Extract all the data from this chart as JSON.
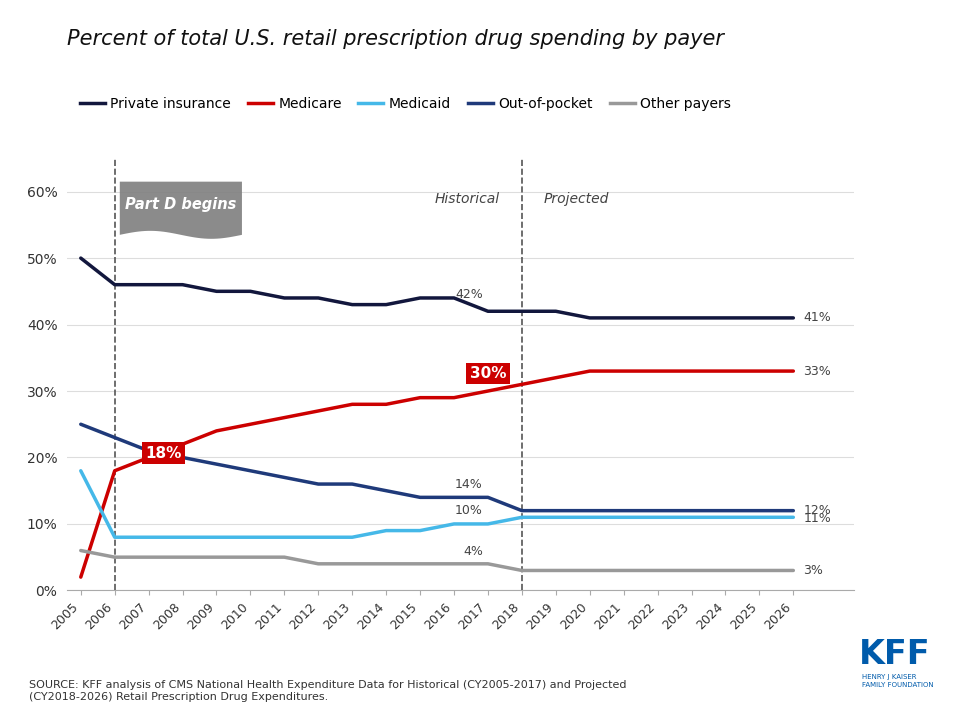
{
  "title": "Percent of total U.S. retail prescription drug spending by payer",
  "years": [
    2005,
    2006,
    2007,
    2008,
    2009,
    2010,
    2011,
    2012,
    2013,
    2014,
    2015,
    2016,
    2017,
    2018,
    2019,
    2020,
    2021,
    2022,
    2023,
    2024,
    2025,
    2026
  ],
  "private_insurance": [
    50,
    46,
    46,
    46,
    45,
    45,
    44,
    44,
    43,
    43,
    44,
    44,
    42,
    42,
    42,
    41,
    41,
    41,
    41,
    41,
    41,
    41
  ],
  "medicare": [
    2,
    18,
    20,
    22,
    24,
    25,
    26,
    27,
    28,
    28,
    29,
    29,
    30,
    31,
    32,
    33,
    33,
    33,
    33,
    33,
    33,
    33
  ],
  "medicaid": [
    18,
    8,
    8,
    8,
    8,
    8,
    8,
    8,
    8,
    9,
    9,
    10,
    10,
    11,
    11,
    11,
    11,
    11,
    11,
    11,
    11,
    11
  ],
  "out_of_pocket": [
    25,
    23,
    21,
    20,
    19,
    18,
    17,
    16,
    16,
    15,
    14,
    14,
    14,
    12,
    12,
    12,
    12,
    12,
    12,
    12,
    12,
    12
  ],
  "other_payers": [
    6,
    5,
    5,
    5,
    5,
    5,
    5,
    4,
    4,
    4,
    4,
    4,
    4,
    3,
    3,
    3,
    3,
    3,
    3,
    3,
    3,
    3
  ],
  "colors": {
    "private_insurance": "#12173d",
    "medicare": "#cc0000",
    "medicaid": "#45b8e8",
    "out_of_pocket": "#1f3a7a",
    "other_payers": "#999999"
  },
  "historical_end": 2017,
  "projected_start": 2018,
  "part_d_year": 2006,
  "source_text": "SOURCE: KFF analysis of CMS National Health Expenditure Data for Historical (CY2005-2017) and Projected\n(CY2018-2026) Retail Prescription Drug Expenditures.",
  "ylim": [
    0,
    65
  ],
  "yticks": [
    0,
    10,
    20,
    30,
    40,
    50,
    60
  ],
  "xlim_left": 2004.6,
  "xlim_right": 2027.8,
  "background_color": "#ffffff"
}
